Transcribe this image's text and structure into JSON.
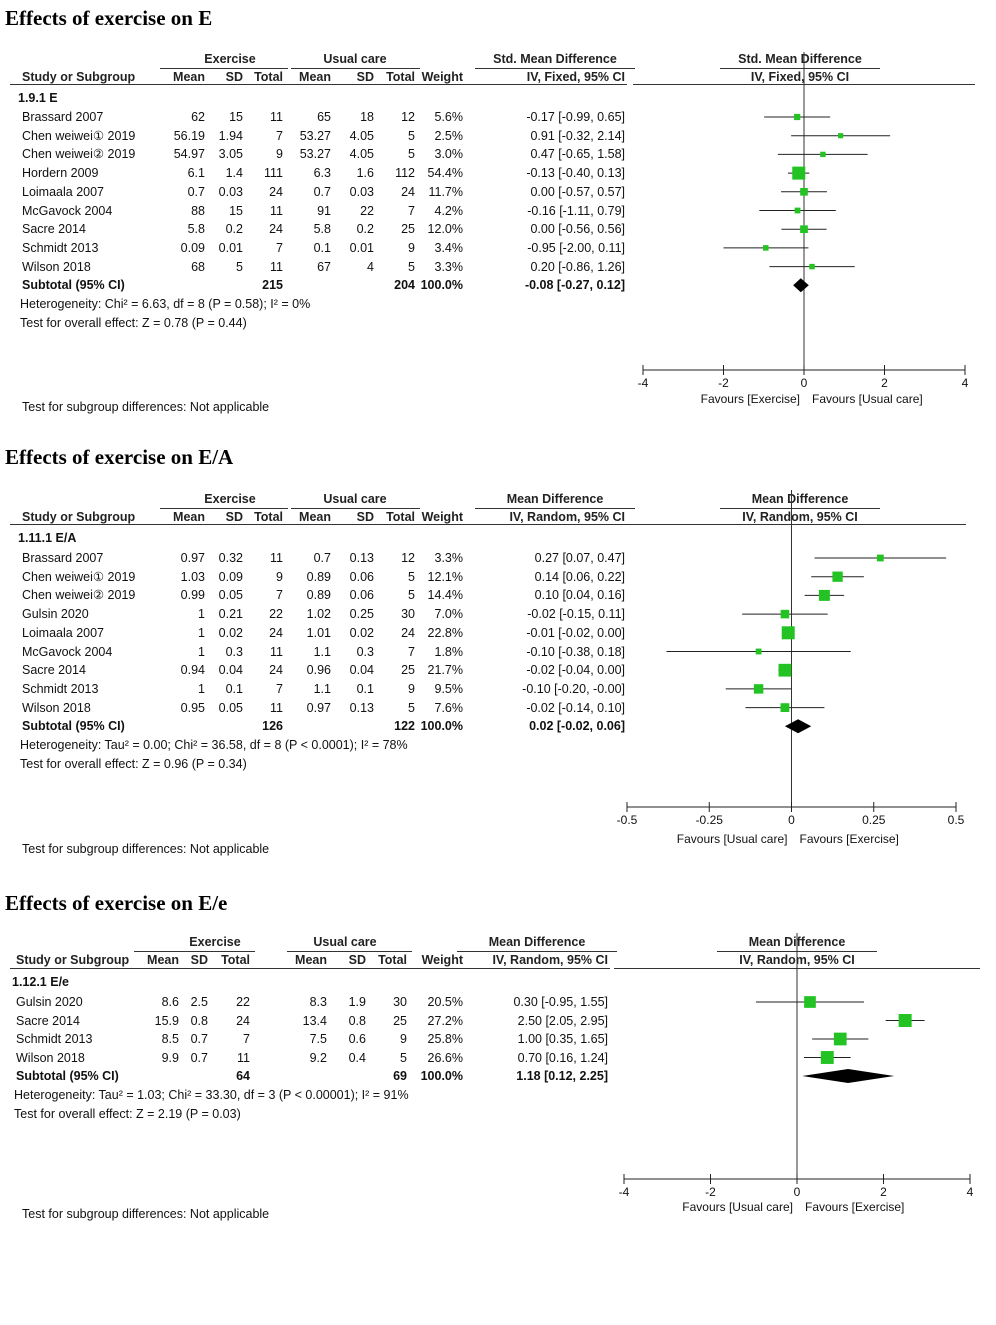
{
  "panels": [
    {
      "title": "Effects of exercise on E",
      "group1_label": "Exercise",
      "group2_label": "Usual care",
      "effect_header": "Std. Mean Difference",
      "method_header": "IV, Fixed, 95% CI",
      "col_headers": [
        "Study or Subgroup",
        "Mean",
        "SD",
        "Total",
        "Mean",
        "SD",
        "Total",
        "Weight"
      ],
      "subgroup_label": "1.9.1 E",
      "rows": [
        {
          "study": "Brassard 2007",
          "m1": "62",
          "sd1": "15",
          "n1": "11",
          "m2": "65",
          "sd2": "18",
          "n2": "12",
          "weight": "5.6%",
          "ci": "-0.17 [-0.99, 0.65]",
          "est": -0.17,
          "lo": -0.99,
          "hi": 0.65,
          "w": 5.6
        },
        {
          "study": "Chen weiwei① 2019",
          "m1": "56.19",
          "sd1": "1.94",
          "n1": "7",
          "m2": "53.27",
          "sd2": "4.05",
          "n2": "5",
          "weight": "2.5%",
          "ci": "0.91 [-0.32, 2.14]",
          "est": 0.91,
          "lo": -0.32,
          "hi": 2.14,
          "w": 2.5
        },
        {
          "study": "Chen weiwei② 2019",
          "m1": "54.97",
          "sd1": "3.05",
          "n1": "9",
          "m2": "53.27",
          "sd2": "4.05",
          "n2": "5",
          "weight": "3.0%",
          "ci": "0.47 [-0.65, 1.58]",
          "est": 0.47,
          "lo": -0.65,
          "hi": 1.58,
          "w": 3.0
        },
        {
          "study": "Hordern 2009",
          "m1": "6.1",
          "sd1": "1.4",
          "n1": "111",
          "m2": "6.3",
          "sd2": "1.6",
          "n2": "112",
          "weight": "54.4%",
          "ci": "-0.13 [-0.40, 0.13]",
          "est": -0.13,
          "lo": -0.4,
          "hi": 0.13,
          "w": 54.4
        },
        {
          "study": "Loimaala 2007",
          "m1": "0.7",
          "sd1": "0.03",
          "n1": "24",
          "m2": "0.7",
          "sd2": "0.03",
          "n2": "24",
          "weight": "11.7%",
          "ci": "0.00 [-0.57, 0.57]",
          "est": 0.0,
          "lo": -0.57,
          "hi": 0.57,
          "w": 11.7
        },
        {
          "study": "McGavock 2004",
          "m1": "88",
          "sd1": "15",
          "n1": "11",
          "m2": "91",
          "sd2": "22",
          "n2": "7",
          "weight": "4.2%",
          "ci": "-0.16 [-1.11, 0.79]",
          "est": -0.16,
          "lo": -1.11,
          "hi": 0.79,
          "w": 4.2
        },
        {
          "study": "Sacre 2014",
          "m1": "5.8",
          "sd1": "0.2",
          "n1": "24",
          "m2": "5.8",
          "sd2": "0.2",
          "n2": "25",
          "weight": "12.0%",
          "ci": "0.00 [-0.56, 0.56]",
          "est": 0.0,
          "lo": -0.56,
          "hi": 0.56,
          "w": 12.0
        },
        {
          "study": "Schmidt 2013",
          "m1": "0.09",
          "sd1": "0.01",
          "n1": "7",
          "m2": "0.1",
          "sd2": "0.01",
          "n2": "9",
          "weight": "3.4%",
          "ci": "-0.95 [-2.00, 0.11]",
          "est": -0.95,
          "lo": -2.0,
          "hi": 0.11,
          "w": 3.4
        },
        {
          "study": "Wilson 2018",
          "m1": "68",
          "sd1": "5",
          "n1": "11",
          "m2": "67",
          "sd2": "4",
          "n2": "5",
          "weight": "3.3%",
          "ci": "0.20 [-0.86, 1.26]",
          "est": 0.2,
          "lo": -0.86,
          "hi": 1.26,
          "w": 3.3
        }
      ],
      "subtotal": {
        "label": "Subtotal (95% CI)",
        "n1": "215",
        "n2": "204",
        "weight": "100.0%",
        "ci": "-0.08 [-0.27, 0.12]",
        "est": -0.08,
        "lo": -0.27,
        "hi": 0.12
      },
      "heterogeneity": "Heterogeneity: Chi² = 6.63, df = 8 (P = 0.58); I² = 0%",
      "overall": "Test for overall effect: Z = 0.78 (P = 0.44)",
      "subgroup_diff": "Test for subgroup differences: Not applicable",
      "axis_range": [
        -4,
        4
      ],
      "ticks": [
        -4,
        -2,
        0,
        2,
        4
      ],
      "tick_labels": [
        "-4",
        "-2",
        "0",
        "2",
        "4"
      ],
      "favours_left": "Favours [Exercise]",
      "favours_right": "Favours [Usual care]"
    },
    {
      "title": "Effects of exercise on E/A",
      "group1_label": "Exercise",
      "group2_label": "Usual care",
      "effect_header": "Mean Difference",
      "method_header": "IV, Random, 95% CI",
      "col_headers": [
        "Study or Subgroup",
        "Mean",
        "SD",
        "Total",
        "Mean",
        "SD",
        "Total",
        "Weight"
      ],
      "subgroup_label": "1.11.1 E/A",
      "rows": [
        {
          "study": "Brassard 2007",
          "m1": "0.97",
          "sd1": "0.32",
          "n1": "11",
          "m2": "0.7",
          "sd2": "0.13",
          "n2": "12",
          "weight": "3.3%",
          "ci": "0.27 [0.07, 0.47]",
          "est": 0.27,
          "lo": 0.07,
          "hi": 0.47,
          "w": 3.3
        },
        {
          "study": "Chen weiwei① 2019",
          "m1": "1.03",
          "sd1": "0.09",
          "n1": "9",
          "m2": "0.89",
          "sd2": "0.06",
          "n2": "5",
          "weight": "12.1%",
          "ci": "0.14 [0.06, 0.22]",
          "est": 0.14,
          "lo": 0.06,
          "hi": 0.22,
          "w": 12.1
        },
        {
          "study": "Chen weiwei② 2019",
          "m1": "0.99",
          "sd1": "0.05",
          "n1": "7",
          "m2": "0.89",
          "sd2": "0.06",
          "n2": "5",
          "weight": "14.4%",
          "ci": "0.10 [0.04, 0.16]",
          "est": 0.1,
          "lo": 0.04,
          "hi": 0.16,
          "w": 14.4
        },
        {
          "study": "Gulsin 2020",
          "m1": "1",
          "sd1": "0.21",
          "n1": "22",
          "m2": "1.02",
          "sd2": "0.25",
          "n2": "30",
          "weight": "7.0%",
          "ci": "-0.02 [-0.15, 0.11]",
          "est": -0.02,
          "lo": -0.15,
          "hi": 0.11,
          "w": 7.0
        },
        {
          "study": "Loimaala 2007",
          "m1": "1",
          "sd1": "0.02",
          "n1": "24",
          "m2": "1.01",
          "sd2": "0.02",
          "n2": "24",
          "weight": "22.8%",
          "ci": "-0.01 [-0.02, 0.00]",
          "est": -0.01,
          "lo": -0.02,
          "hi": 0.0,
          "w": 22.8
        },
        {
          "study": "McGavock 2004",
          "m1": "1",
          "sd1": "0.3",
          "n1": "11",
          "m2": "1.1",
          "sd2": "0.3",
          "n2": "7",
          "weight": "1.8%",
          "ci": "-0.10 [-0.38, 0.18]",
          "est": -0.1,
          "lo": -0.38,
          "hi": 0.18,
          "w": 1.8
        },
        {
          "study": "Sacre 2014",
          "m1": "0.94",
          "sd1": "0.04",
          "n1": "24",
          "m2": "0.96",
          "sd2": "0.04",
          "n2": "25",
          "weight": "21.7%",
          "ci": "-0.02 [-0.04, 0.00]",
          "est": -0.02,
          "lo": -0.04,
          "hi": 0.0,
          "w": 21.7
        },
        {
          "study": "Schmidt 2013",
          "m1": "1",
          "sd1": "0.1",
          "n1": "7",
          "m2": "1.1",
          "sd2": "0.1",
          "n2": "9",
          "weight": "9.5%",
          "ci": "-0.10 [-0.20, -0.00]",
          "est": -0.1,
          "lo": -0.2,
          "hi": 0.0,
          "w": 9.5
        },
        {
          "study": "Wilson 2018",
          "m1": "0.95",
          "sd1": "0.05",
          "n1": "11",
          "m2": "0.97",
          "sd2": "0.13",
          "n2": "5",
          "weight": "7.6%",
          "ci": "-0.02 [-0.14, 0.10]",
          "est": -0.02,
          "lo": -0.14,
          "hi": 0.1,
          "w": 7.6
        }
      ],
      "subtotal": {
        "label": "Subtotal (95% CI)",
        "n1": "126",
        "n2": "122",
        "weight": "100.0%",
        "ci": "0.02 [-0.02, 0.06]",
        "est": 0.02,
        "lo": -0.02,
        "hi": 0.06
      },
      "heterogeneity": "Heterogeneity: Tau² = 0.00; Chi² = 36.58, df = 8 (P < 0.0001); I² = 78%",
      "overall": "Test for overall effect: Z = 0.96 (P = 0.34)",
      "subgroup_diff": "Test for subgroup differences: Not applicable",
      "axis_range": [
        -0.5,
        0.5
      ],
      "ticks": [
        -0.5,
        -0.25,
        0,
        0.25,
        0.5
      ],
      "tick_labels": [
        "-0.5",
        "-0.25",
        "0",
        "0.25",
        "0.5"
      ],
      "favours_left": "Favours [Usual care]",
      "favours_right": "Favours [Exercise]"
    },
    {
      "title": "Effects of exercise on E/e",
      "group1_label": "Exercise",
      "group2_label": "Usual care",
      "effect_header": "Mean Difference",
      "method_header": "IV, Random, 95% CI",
      "col_headers": [
        "Study or Subgroup",
        "Mean",
        "SD",
        "Total",
        "Mean",
        "SD",
        "Total",
        "Weight"
      ],
      "subgroup_label": "1.12.1 E/e",
      "rows": [
        {
          "study": "Gulsin 2020",
          "m1": "8.6",
          "sd1": "2.5",
          "n1": "22",
          "m2": "8.3",
          "sd2": "1.9",
          "n2": "30",
          "weight": "20.5%",
          "ci": "0.30 [-0.95, 1.55]",
          "est": 0.3,
          "lo": -0.95,
          "hi": 1.55,
          "w": 20.5
        },
        {
          "study": "Sacre 2014",
          "m1": "15.9",
          "sd1": "0.8",
          "n1": "24",
          "m2": "13.4",
          "sd2": "0.8",
          "n2": "25",
          "weight": "27.2%",
          "ci": "2.50 [2.05, 2.95]",
          "est": 2.5,
          "lo": 2.05,
          "hi": 2.95,
          "w": 27.2
        },
        {
          "study": "Schmidt 2013",
          "m1": "8.5",
          "sd1": "0.7",
          "n1": "7",
          "m2": "7.5",
          "sd2": "0.6",
          "n2": "9",
          "weight": "25.8%",
          "ci": "1.00 [0.35, 1.65]",
          "est": 1.0,
          "lo": 0.35,
          "hi": 1.65,
          "w": 25.8
        },
        {
          "study": "Wilson 2018",
          "m1": "9.9",
          "sd1": "0.7",
          "n1": "11",
          "m2": "9.2",
          "sd2": "0.4",
          "n2": "5",
          "weight": "26.6%",
          "ci": "0.70 [0.16, 1.24]",
          "est": 0.7,
          "lo": 0.16,
          "hi": 1.24,
          "w": 26.6
        }
      ],
      "subtotal": {
        "label": "Subtotal (95% CI)",
        "n1": "64",
        "n2": "69",
        "weight": "100.0%",
        "ci": "1.18 [0.12, 2.25]",
        "est": 1.18,
        "lo": 0.12,
        "hi": 2.25
      },
      "heterogeneity": "Heterogeneity: Tau² = 1.03; Chi² = 33.30, df = 3 (P < 0.00001); I² = 91%",
      "overall": "Test for overall effect: Z = 2.19 (P = 0.03)",
      "subgroup_diff": "Test for subgroup differences: Not applicable",
      "axis_range": [
        -4,
        4
      ],
      "ticks": [
        -4,
        -2,
        0,
        2,
        4
      ],
      "tick_labels": [
        "-4",
        "-2",
        "0",
        "2",
        "4"
      ],
      "favours_left": "Favours [Usual care]",
      "favours_right": "Favours [Exercise]"
    }
  ],
  "chart_data": [
    {
      "type": "forest",
      "title": "Effects of exercise on E",
      "xlim": [
        -4,
        4
      ],
      "estimates": [
        -0.17,
        0.91,
        0.47,
        -0.13,
        0.0,
        -0.16,
        0.0,
        -0.95,
        0.2
      ],
      "lower": [
        -0.99,
        -0.32,
        -0.65,
        -0.4,
        -0.57,
        -1.11,
        -0.56,
        -2.0,
        -0.86
      ],
      "upper": [
        0.65,
        2.14,
        1.58,
        0.13,
        0.57,
        0.79,
        0.56,
        0.11,
        1.26
      ],
      "pooled": [
        -0.08,
        -0.27,
        0.12
      ]
    },
    {
      "type": "forest",
      "title": "Effects of exercise on E/A",
      "xlim": [
        -0.5,
        0.5
      ],
      "estimates": [
        0.27,
        0.14,
        0.1,
        -0.02,
        -0.01,
        -0.1,
        -0.02,
        -0.1,
        -0.02
      ],
      "lower": [
        0.07,
        0.06,
        0.04,
        -0.15,
        -0.02,
        -0.38,
        -0.04,
        -0.2,
        -0.14
      ],
      "upper": [
        0.47,
        0.22,
        0.16,
        0.11,
        0.0,
        0.18,
        0.0,
        0.0,
        0.1
      ],
      "pooled": [
        0.02,
        -0.02,
        0.06
      ]
    },
    {
      "type": "forest",
      "title": "Effects of exercise on E/e",
      "xlim": [
        -4,
        4
      ],
      "estimates": [
        0.3,
        2.5,
        1.0,
        0.7
      ],
      "lower": [
        -0.95,
        2.05,
        0.35,
        0.16
      ],
      "upper": [
        1.55,
        2.95,
        1.65,
        1.24
      ],
      "pooled": [
        1.18,
        0.12,
        2.25
      ]
    }
  ],
  "colors": {
    "marker": "#22c322",
    "diamond": "#000000",
    "line": "#222222"
  }
}
